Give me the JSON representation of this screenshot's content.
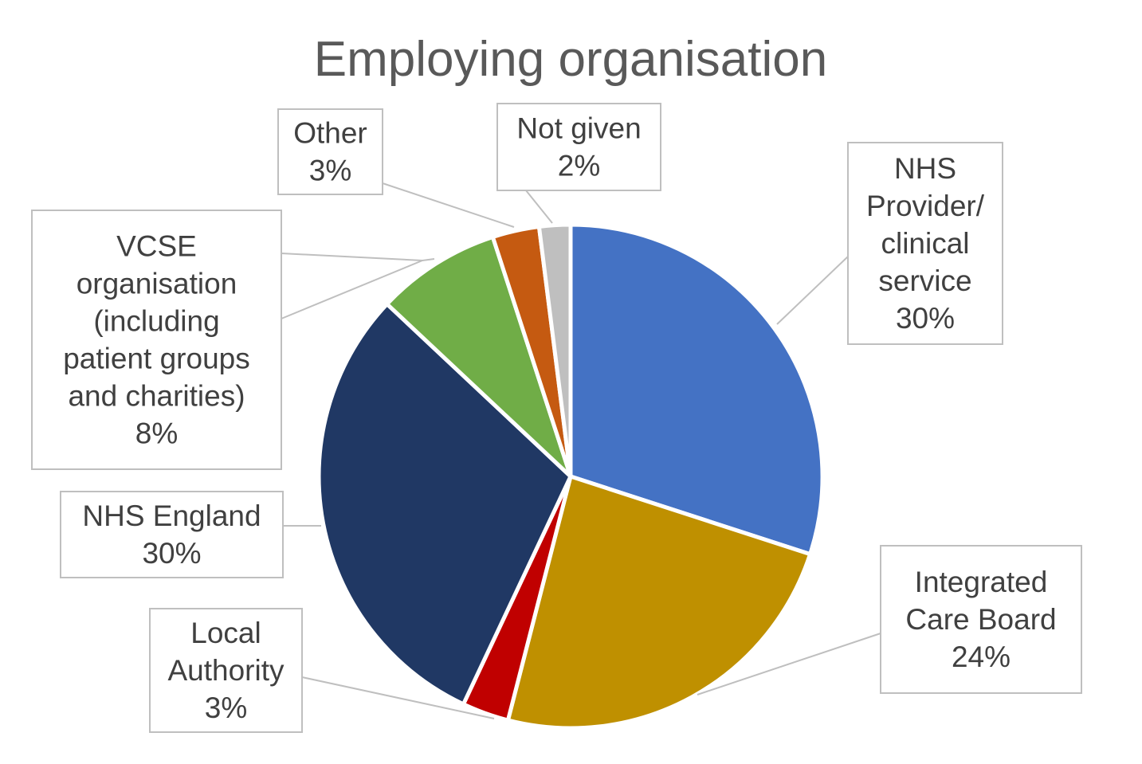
{
  "chart_data": {
    "type": "pie",
    "title": "Employing organisation",
    "slices": [
      {
        "label": "NHS Provider/ clinical service",
        "label_lines": [
          "NHS",
          "Provider/",
          "clinical",
          "service"
        ],
        "value": 30,
        "value_label": "30%",
        "color": "#4472C4"
      },
      {
        "label": "Integrated Care Board",
        "label_lines": [
          "Integrated",
          "Care Board"
        ],
        "value": 24,
        "value_label": "24%",
        "color": "#BF9000"
      },
      {
        "label": "Local Authority",
        "label_lines": [
          "Local",
          "Authority"
        ],
        "value": 3,
        "value_label": "3%",
        "color": "#C00000"
      },
      {
        "label": "NHS England",
        "label_lines": [
          "NHS England"
        ],
        "value": 30,
        "value_label": "30%",
        "color": "#203864"
      },
      {
        "label": "VCSE organisation (including patient groups and charities)",
        "label_lines": [
          "VCSE",
          "organisation",
          "(including",
          "patient groups",
          "and charities)"
        ],
        "value": 8,
        "value_label": "8%",
        "color": "#70AD47"
      },
      {
        "label": "Other",
        "label_lines": [
          "Other"
        ],
        "value": 3,
        "value_label": "3%",
        "color": "#C55A11"
      },
      {
        "label": "Not given",
        "label_lines": [
          "Not given"
        ],
        "value": 2,
        "value_label": "2%",
        "color": "#BFBFBF"
      }
    ],
    "start_angle_deg": 0,
    "direction": "clockwise",
    "legend": "none",
    "data_labels": "callouts"
  }
}
